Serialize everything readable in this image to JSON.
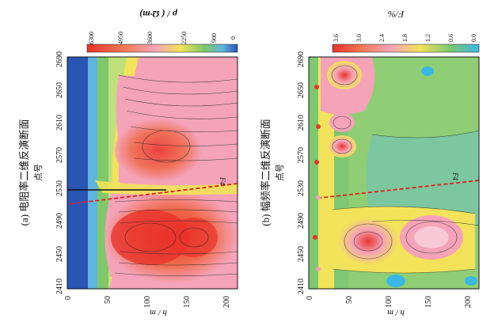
{
  "figure": {
    "panel_a": {
      "title": "(a) 电阻率二维反演断面",
      "x_axis_label": "点号",
      "y_axis_label": "h / m",
      "x_ticks": [
        "2410",
        "2450",
        "2490",
        "2530",
        "2570",
        "2610",
        "2650",
        "2690"
      ],
      "y_ticks": [
        "0",
        "50",
        "100",
        "150",
        "200"
      ],
      "fault_label": "F4",
      "colorbar_label": "ρ / ( Ω·m)",
      "colorbar_ticks": [
        "6300",
        "4950",
        "3600",
        "2250",
        "900",
        "0"
      ],
      "colors": {
        "low": "#2a55b5",
        "mid_low": "#7ec86a",
        "mid": "#f2e35a",
        "mid_high": "#f4a3b8",
        "high": "#e8332c"
      }
    },
    "panel_b": {
      "title": "(b) 幅频率二维反演断面",
      "x_axis_label": "点号",
      "y_axis_label": "h / m",
      "x_ticks": [
        "2410",
        "2450",
        "2490",
        "2530",
        "2570",
        "2610",
        "2650",
        "2690"
      ],
      "y_ticks": [
        "0",
        "50",
        "100",
        "150",
        "200"
      ],
      "fault_label": "F4",
      "colorbar_label": "F/%",
      "colorbar_ticks": [
        "3.6",
        "3.0",
        "2.4",
        "1.8",
        "1.2",
        "0.6",
        "0.0"
      ],
      "colors": {
        "low": "#3bb7e6",
        "mid_low": "#7dc870",
        "mid": "#f3e15a",
        "mid_high": "#f4a3b8",
        "high": "#e8332c"
      }
    }
  }
}
